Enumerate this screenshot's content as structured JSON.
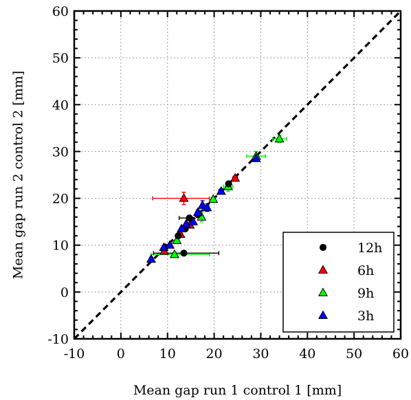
{
  "chart_data": {
    "type": "scatter",
    "xlabel": "Mean gap run 1 control 1 [mm]",
    "ylabel": "Mean gap run 2 control 2 [mm]",
    "xlim": [
      -10,
      60
    ],
    "ylim": [
      -10,
      60
    ],
    "ticks": [
      -10,
      0,
      10,
      20,
      30,
      40,
      50,
      60
    ],
    "tick_labels": [
      "-10",
      "0",
      "10",
      "20",
      "30",
      "40",
      "50",
      "60"
    ],
    "grid": true,
    "legend_position": "bottom-right",
    "reference_line": {
      "style": "dashed",
      "color": "#000000",
      "from": [
        -10,
        -10
      ],
      "to": [
        60,
        60
      ]
    },
    "series": [
      {
        "name": "12h",
        "marker": "circle",
        "color": "#000000",
        "points": [
          {
            "x": 13.5,
            "y": 8.3,
            "xerr": [
              6.5,
              7.5
            ],
            "yerr": 0.2
          },
          {
            "x": 9.5,
            "y": 9.6,
            "xerr": [
              0.3,
              0.3
            ],
            "yerr": 0.3
          },
          {
            "x": 12.3,
            "y": 12.0,
            "xerr": [
              0.3,
              0.3
            ],
            "yerr": 0.3
          },
          {
            "x": 13.8,
            "y": 13.5,
            "xerr": [
              0.4,
              0.4
            ],
            "yerr": 0.4
          },
          {
            "x": 14.7,
            "y": 15.8,
            "xerr": [
              2.2,
              0.4
            ],
            "yerr": 0.4
          },
          {
            "x": 16.5,
            "y": 16.5,
            "xerr": [
              0.3,
              0.3
            ],
            "yerr": 0.3
          },
          {
            "x": 23.1,
            "y": 23.1,
            "xerr": [
              0.3,
              0.3
            ],
            "yerr": 0.3
          }
        ]
      },
      {
        "name": "6h",
        "marker": "triangle",
        "color": "#ff0000",
        "points": [
          {
            "x": 13.5,
            "y": 20.0,
            "xerr": [
              6.7,
              5.5
            ],
            "yerr": 1.3
          },
          {
            "x": 9.3,
            "y": 8.7,
            "xerr": [
              0.3,
              0.3
            ],
            "yerr": 0.3
          },
          {
            "x": 12.8,
            "y": 12.3,
            "xerr": [
              0.3,
              0.3
            ],
            "yerr": 0.3
          },
          {
            "x": 14.8,
            "y": 14.3,
            "xerr": [
              0.3,
              0.3
            ],
            "yerr": 0.3
          },
          {
            "x": 24.5,
            "y": 24.3,
            "xerr": [
              0.5,
              0.5
            ],
            "yerr": 0.5
          }
        ]
      },
      {
        "name": "9h",
        "marker": "triangle",
        "color": "#00ff00",
        "points": [
          {
            "x": 11.5,
            "y": 8.0,
            "xerr": [
              5.0,
              7.5
            ],
            "yerr": 0.5
          },
          {
            "x": 34.0,
            "y": 32.7,
            "xerr": [
              1.5,
              1.5
            ],
            "yerr": 0.8
          },
          {
            "x": 29.0,
            "y": 29.0,
            "xerr": [
              2.0,
              2.0
            ],
            "yerr": 1.0
          },
          {
            "x": 23.0,
            "y": 22.5,
            "xerr": [
              1.0,
              1.0
            ],
            "yerr": 1.0
          },
          {
            "x": 19.8,
            "y": 19.8,
            "xerr": [
              0.4,
              0.4
            ],
            "yerr": 0.4
          },
          {
            "x": 17.3,
            "y": 16.0,
            "xerr": [
              0.4,
              0.4
            ],
            "yerr": 1.0
          },
          {
            "x": 12.0,
            "y": 11.0,
            "xerr": [
              0.3,
              0.3
            ],
            "yerr": 0.3
          }
        ]
      },
      {
        "name": "3h",
        "marker": "triangle",
        "color": "#0000ff",
        "points": [
          {
            "x": 6.5,
            "y": 7.0,
            "xerr": [
              0.3,
              0.3
            ],
            "yerr": 0.4
          },
          {
            "x": 9.2,
            "y": 9.5,
            "xerr": [
              0.3,
              0.3
            ],
            "yerr": 0.3
          },
          {
            "x": 10.5,
            "y": 10.0,
            "xerr": [
              0.3,
              0.3
            ],
            "yerr": 0.3
          },
          {
            "x": 13.0,
            "y": 13.5,
            "xerr": [
              0.3,
              0.3
            ],
            "yerr": 0.3
          },
          {
            "x": 14.0,
            "y": 14.5,
            "xerr": [
              0.3,
              0.3
            ],
            "yerr": 0.3
          },
          {
            "x": 15.5,
            "y": 15.0,
            "xerr": [
              0.3,
              0.3
            ],
            "yerr": 0.3
          },
          {
            "x": 16.5,
            "y": 17.0,
            "xerr": [
              0.3,
              0.3
            ],
            "yerr": 0.5
          },
          {
            "x": 17.5,
            "y": 18.5,
            "xerr": [
              0.3,
              0.3
            ],
            "yerr": 1.0
          },
          {
            "x": 18.5,
            "y": 18.0,
            "xerr": [
              0.4,
              0.4
            ],
            "yerr": 0.8
          },
          {
            "x": 21.5,
            "y": 21.5,
            "xerr": [
              0.5,
              0.5
            ],
            "yerr": 0.5
          },
          {
            "x": 29.0,
            "y": 28.5,
            "xerr": [
              0.5,
              0.5
            ],
            "yerr": 0.5
          }
        ]
      }
    ]
  }
}
